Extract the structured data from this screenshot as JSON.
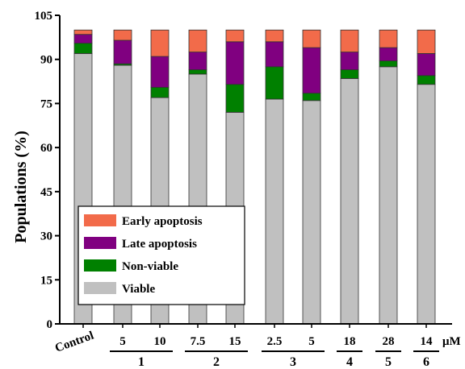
{
  "chart_data": {
    "type": "bar",
    "stacked": true,
    "ylabel": "Populations (%)",
    "ylim": [
      0,
      105
    ],
    "yticks": [
      0,
      15,
      30,
      45,
      60,
      75,
      90,
      105
    ],
    "grid": false,
    "legend_position": "lower-left",
    "unit_label": "μM",
    "categories": [
      "Control",
      "5",
      "10",
      "7.5",
      "15",
      "2.5",
      "5",
      "18",
      "28",
      "14"
    ],
    "groups": [
      {
        "label": "1",
        "from": 1,
        "to": 2
      },
      {
        "label": "2",
        "from": 3,
        "to": 4
      },
      {
        "label": "3",
        "from": 5,
        "to": 6
      },
      {
        "label": "4",
        "from": 7,
        "to": 7
      },
      {
        "label": "5",
        "from": 8,
        "to": 8
      },
      {
        "label": "6",
        "from": 9,
        "to": 9
      }
    ],
    "series": [
      {
        "name": "Viable",
        "color": "#c0c0c0",
        "values": [
          92,
          88,
          77,
          85,
          72,
          76.5,
          76,
          83.5,
          87.5,
          81.5
        ]
      },
      {
        "name": "Non-viable",
        "color": "#008000",
        "values": [
          3.5,
          0.5,
          3.5,
          1.5,
          9.5,
          11,
          2.5,
          3,
          2,
          3
        ]
      },
      {
        "name": "Late apoptosis",
        "color": "#800080",
        "values": [
          3,
          8,
          10.5,
          6,
          14.5,
          8.5,
          15.5,
          6,
          4.5,
          7.5
        ]
      },
      {
        "name": "Early apoptosis",
        "color": "#f26b4a",
        "values": [
          1.5,
          3.5,
          9,
          7.5,
          4,
          4,
          6,
          7.5,
          6,
          8
        ]
      }
    ]
  }
}
